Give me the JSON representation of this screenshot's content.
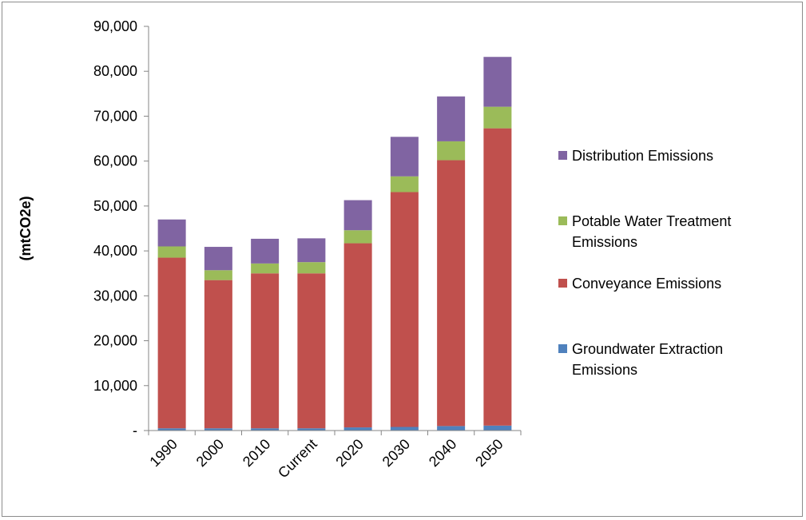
{
  "chart_data": {
    "type": "bar",
    "stacked": true,
    "title": "",
    "xlabel": "",
    "ylabel": "(mtCO2e)",
    "ylim": [
      0,
      90000
    ],
    "yticks": [
      {
        "value": 0,
        "label": "-"
      },
      {
        "value": 10000,
        "label": "10,000"
      },
      {
        "value": 20000,
        "label": "20,000"
      },
      {
        "value": 30000,
        "label": "30,000"
      },
      {
        "value": 40000,
        "label": "40,000"
      },
      {
        "value": 50000,
        "label": "50,000"
      },
      {
        "value": 60000,
        "label": "60,000"
      },
      {
        "value": 70000,
        "label": "70,000"
      },
      {
        "value": 80000,
        "label": "80,000"
      },
      {
        "value": 90000,
        "label": "90,000"
      }
    ],
    "grid": false,
    "legend_position": "right",
    "categories": [
      "1990",
      "2000",
      "2010",
      "Current",
      "2020",
      "2030",
      "2040",
      "2050"
    ],
    "series": [
      {
        "name": "Groundwater Extraction Emissions",
        "color": "#4f81bd",
        "values": [
          500,
          500,
          500,
          500,
          700,
          800,
          1000,
          1100
        ]
      },
      {
        "name": "Conveyance Emissions",
        "color": "#c0504d",
        "values": [
          38000,
          33000,
          34500,
          34500,
          41000,
          52300,
          59200,
          66200
        ]
      },
      {
        "name": "Potable Water Treatment Emissions",
        "color": "#9bbb59",
        "values": [
          2500,
          2200,
          2200,
          2500,
          2900,
          3500,
          4200,
          4800
        ]
      },
      {
        "name": "Distribution Emissions",
        "color": "#8064a2",
        "values": [
          6000,
          5200,
          5500,
          5300,
          6700,
          8800,
          10000,
          11100
        ]
      }
    ],
    "legend_order": [
      "Distribution Emissions",
      "Potable Water Treatment Emissions",
      "Conveyance Emissions",
      "Groundwater Extraction Emissions"
    ],
    "legend_labels": {
      "Distribution Emissions": [
        "Distribution Emissions"
      ],
      "Potable Water Treatment Emissions": [
        "Potable Water Treatment",
        "Emissions"
      ],
      "Conveyance Emissions": [
        "Conveyance Emissions"
      ],
      "Groundwater Extraction Emissions": [
        "Groundwater Extraction",
        "Emissions"
      ]
    }
  }
}
